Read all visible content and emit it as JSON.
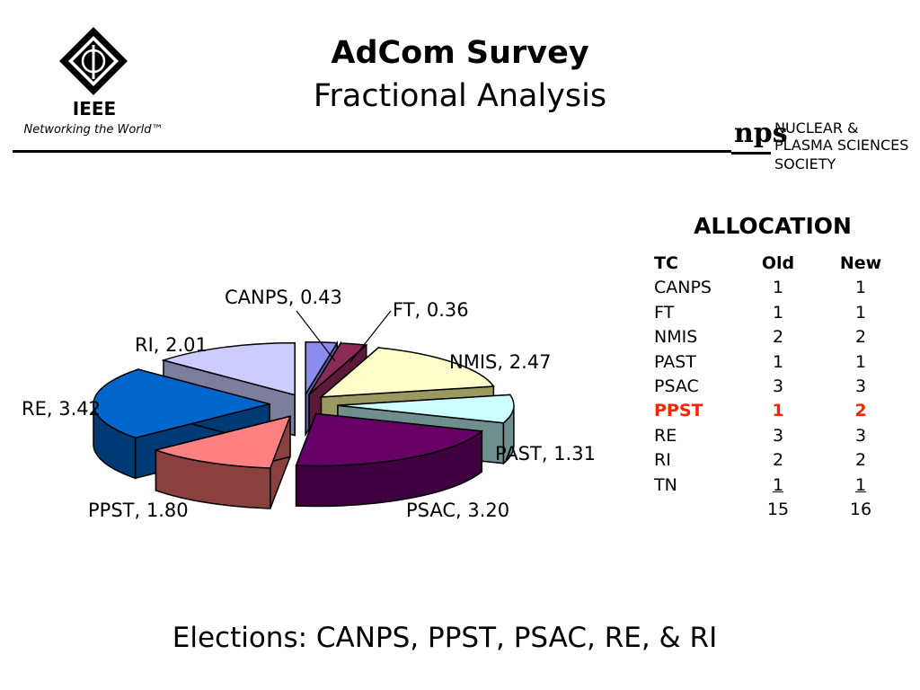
{
  "header": {
    "title": "AdCom Survey",
    "subtitle": "Fractional Analysis",
    "ieee_logo": {
      "name": "IEEE",
      "tagline": "Networking the World™"
    },
    "nps_logo": {
      "line1": "NUCLEAR &",
      "line2": "PLASMA SCIENCES",
      "line3": "SOCIETY",
      "mark": "nps"
    }
  },
  "chart_data": {
    "type": "pie",
    "title": "",
    "categories": [
      "CANPS",
      "FT",
      "NMIS",
      "PAST",
      "PSAC",
      "PPST",
      "RE",
      "RI"
    ],
    "values": [
      0.43,
      0.36,
      2.47,
      1.31,
      3.2,
      1.8,
      3.42,
      2.01
    ],
    "labels": [
      "CANPS, 0.43",
      "FT, 0.36",
      "NMIS, 2.47",
      "PAST, 1.31",
      "PSAC, 3.20",
      "PPST, 1.80",
      "RE, 3.42",
      "RI, 2.01"
    ],
    "colors": [
      "#8a8cf0",
      "#8b2a55",
      "#ffffcc",
      "#ccffff",
      "#660066",
      "#ff8080",
      "#0066cc",
      "#ccccff"
    ],
    "side_colors": [
      "#5a5ca8",
      "#5c1a38",
      "#9a9a60",
      "#6f8f8f",
      "#3e003e",
      "#8b4040",
      "#003a74",
      "#7d7d9e"
    ],
    "style": "exploded-3d",
    "legend": "none"
  },
  "allocation": {
    "title": "ALLOCATION",
    "headers": [
      "TC",
      "Old",
      "New"
    ],
    "rows": [
      [
        "CANPS",
        "1",
        "1"
      ],
      [
        "FT",
        "1",
        "1"
      ],
      [
        "NMIS",
        "2",
        "2"
      ],
      [
        "PAST",
        "1",
        "1"
      ],
      [
        "PSAC",
        "3",
        "3"
      ],
      [
        "PPST",
        "1",
        "2"
      ],
      [
        "RE",
        "3",
        "3"
      ],
      [
        "RI",
        "2",
        "2"
      ],
      [
        "TN",
        "1",
        "1"
      ]
    ],
    "highlight_row": "PPST",
    "highlight_color": "#ff2200",
    "totals": [
      "",
      "15",
      "16"
    ]
  },
  "footer": {
    "elections": "Elections: CANPS, PPST, PSAC, RE, & RI"
  }
}
